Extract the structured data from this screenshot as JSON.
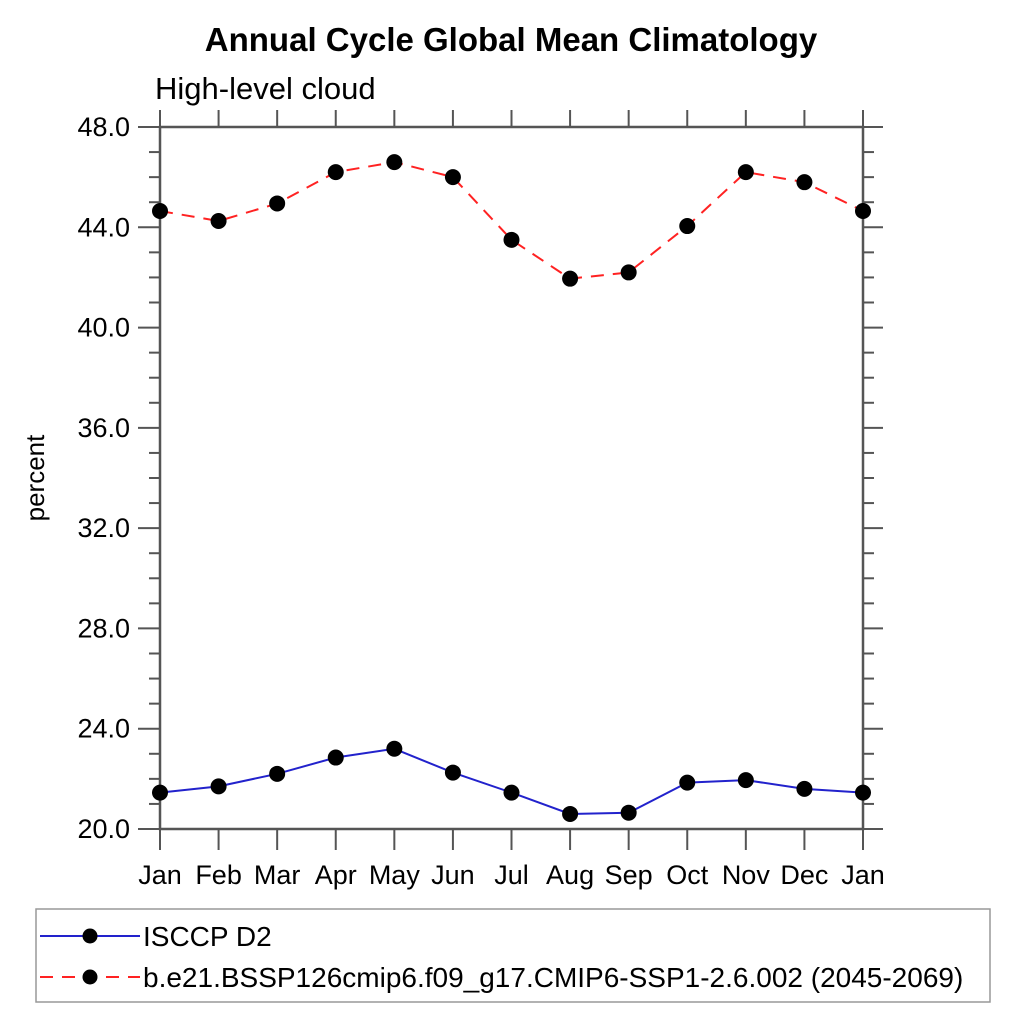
{
  "chart_data": {
    "type": "line",
    "title": "Annual Cycle Global Mean Climatology",
    "subtitle": "High-level cloud",
    "ylabel": "percent",
    "xlabel": "",
    "categories": [
      "Jan",
      "Feb",
      "Mar",
      "Apr",
      "May",
      "Jun",
      "Jul",
      "Aug",
      "Sep",
      "Oct",
      "Nov",
      "Dec",
      "Jan"
    ],
    "ylim": [
      20.0,
      48.0
    ],
    "ytick_interval": 4.0,
    "ytick_labels": [
      "20.0",
      "24.0",
      "28.0",
      "32.0",
      "36.0",
      "40.0",
      "44.0",
      "48.0"
    ],
    "minor_tick_interval": 1.0,
    "grid": false,
    "frame_color": "#555555",
    "legend_position": "bottom-left-box",
    "series": [
      {
        "name": "ISCCP D2",
        "color": "#2222cc",
        "style": "solid",
        "marker": "filled-circle",
        "marker_color": "#000000",
        "values": [
          21.45,
          21.7,
          22.2,
          22.85,
          23.2,
          22.25,
          21.45,
          20.6,
          20.65,
          21.85,
          21.95,
          21.6,
          21.45
        ]
      },
      {
        "name": "b.e21.BSSP126cmip6.f09_g17.CMIP6-SSP1-2.6.002 (2045-2069)",
        "color": "#ff2222",
        "style": "dashed",
        "marker": "filled-circle",
        "marker_color": "#000000",
        "values": [
          44.65,
          44.25,
          44.95,
          46.2,
          46.6,
          46.0,
          43.5,
          41.95,
          42.2,
          44.05,
          46.2,
          45.8,
          44.65
        ]
      }
    ]
  }
}
